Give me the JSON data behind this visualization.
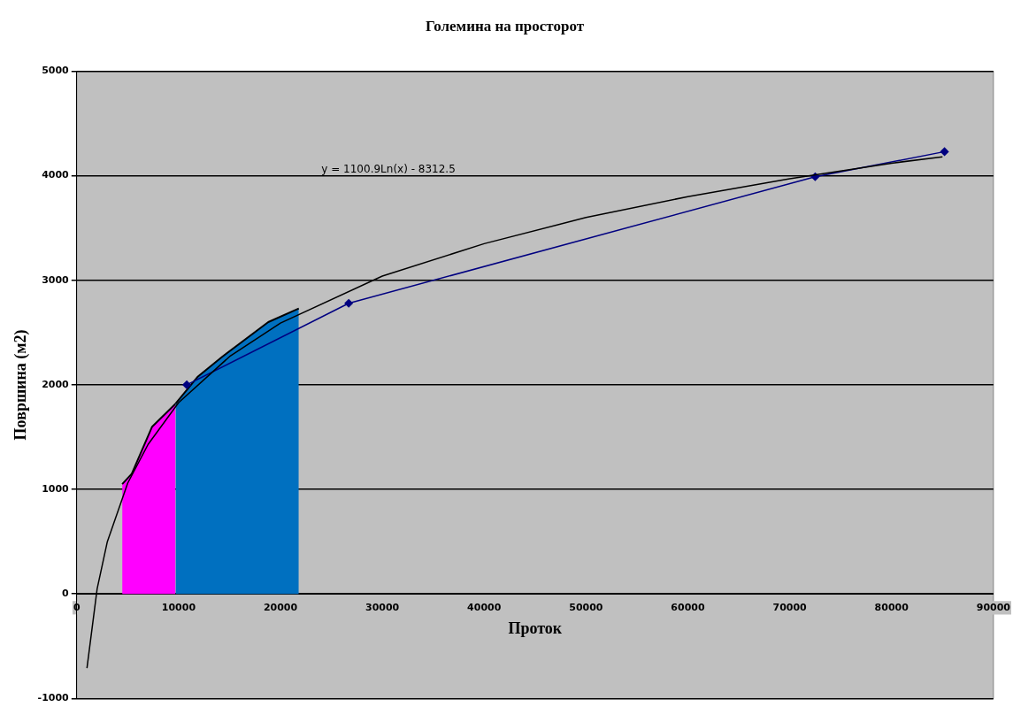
{
  "chart_data": {
    "type": "line",
    "title": "Големина на просторот",
    "xlabel": "Проток",
    "ylabel": "Површина (м2)",
    "xlim": [
      0,
      90000
    ],
    "xticks": [
      0,
      10000,
      20000,
      30000,
      40000,
      50000,
      60000,
      70000,
      80000,
      90000
    ],
    "ylim": [
      -1000,
      5000
    ],
    "yticks": [
      -1000,
      0,
      1000,
      2000,
      3000,
      4000,
      5000
    ],
    "grid": "y",
    "legend": false,
    "series": [
      {
        "type": "area",
        "color": "#ff00ff",
        "x": [
          4460,
          5400,
          7400,
          9700
        ],
        "values": [
          1050,
          1150,
          1600,
          1820
        ]
      },
      {
        "type": "area",
        "color": "#0070c0",
        "x": [
          9700,
          11900,
          14300,
          18800,
          21800
        ],
        "values": [
          1820,
          2080,
          2270,
          2600,
          2730
        ]
      },
      {
        "type": "line",
        "color": "#000080",
        "marker": "diamond",
        "x": [
          10800,
          26700,
          72500,
          85200
        ],
        "values": [
          2000,
          2780,
          3990,
          4230
        ]
      },
      {
        "type": "line",
        "color": "#000000",
        "marker": "none",
        "x": [
          1000,
          2000,
          3000,
          5000,
          7000,
          10000,
          15000,
          20000,
          30000,
          40000,
          50000,
          60000,
          70000,
          80000,
          85000
        ],
        "values": [
          -710,
          50,
          500,
          1060,
          1430,
          1830,
          2270,
          2590,
          3040,
          3350,
          3600,
          3800,
          3970,
          4120,
          4180
        ]
      }
    ],
    "annotations": [
      "y = 1100.9Ln(x) - 8312.5"
    ]
  }
}
